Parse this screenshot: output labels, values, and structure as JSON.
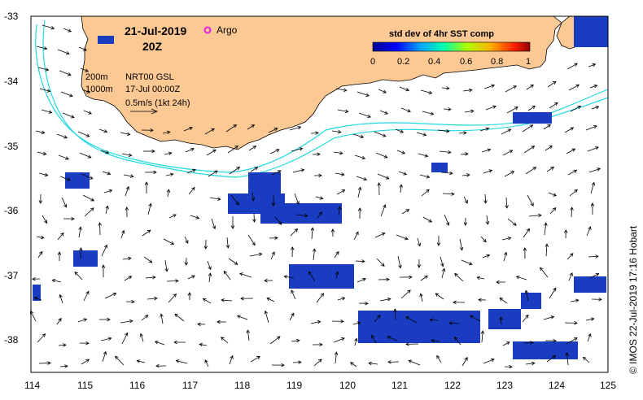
{
  "map": {
    "date": "21-Jul-2019",
    "time": "20Z",
    "argo_label": "Argo",
    "colorbar": {
      "title": "std dev of 4hr SST comp",
      "ticks": [
        "0",
        "0.2",
        "0.4",
        "0.6",
        "0.8",
        "1"
      ]
    },
    "legend": {
      "contour_200": "200m",
      "contour_1000": "1000m",
      "product": "NRT00 GSL",
      "product_date": "17-Jul 00:00Z",
      "scale": "0.5m/s (1kt 24h)"
    },
    "y_ticks": [
      "-33",
      "-34",
      "-35",
      "-36",
      "-37",
      "-38"
    ],
    "x_ticks": [
      "114",
      "115",
      "116",
      "117",
      "118",
      "119",
      "120",
      "121",
      "122",
      "123",
      "124",
      "125"
    ],
    "credit": "© IMOS 22-Jul-2019 17:16 Hobart",
    "colors": {
      "land": "#fcc894",
      "contour": "#22d8e0",
      "argo": "#e020e0",
      "patch": "#1a3cc0"
    }
  }
}
